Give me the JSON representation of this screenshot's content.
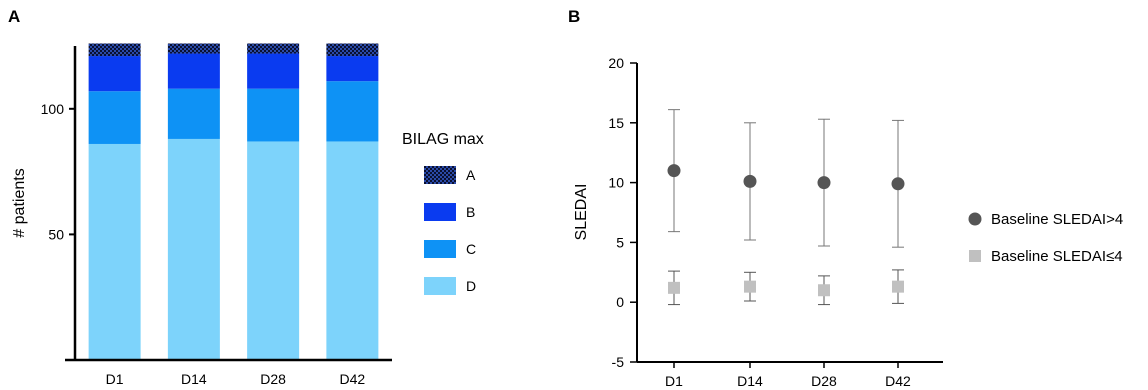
{
  "chart_data": [
    {
      "panel": "A",
      "type": "bar",
      "stacked": true,
      "categories": [
        "D1",
        "D14",
        "D28",
        "D42"
      ],
      "ylabel": "# patients",
      "ylim": [
        0,
        125
      ],
      "yticks": [
        50,
        100
      ],
      "legend_title": "BILAG max",
      "legend_position": "right",
      "series": [
        {
          "name": "D",
          "color": "#7dd3fb",
          "values": [
            86,
            88,
            87,
            87
          ]
        },
        {
          "name": "C",
          "color": "#0e92f5",
          "values": [
            21,
            20,
            21,
            24
          ]
        },
        {
          "name": "B",
          "color": "#0a3bf0",
          "values": [
            14,
            14,
            14,
            10
          ]
        },
        {
          "name": "A",
          "color": "#0b1d5e",
          "pattern": "checkered",
          "values": [
            5,
            4,
            4,
            5
          ]
        }
      ]
    },
    {
      "panel": "B",
      "type": "scatter",
      "error_bars": true,
      "categories": [
        "D1",
        "D14",
        "D28",
        "D42"
      ],
      "ylabel": "SLEDAI",
      "ylim": [
        -5,
        20
      ],
      "yticks": [
        -5,
        0,
        5,
        10,
        15,
        20
      ],
      "legend_position": "right",
      "series": [
        {
          "name": "Baseline SLEDAI>4",
          "marker": "circle",
          "color": "#555555",
          "values": [
            11.0,
            10.1,
            10.0,
            9.9
          ],
          "err_high": [
            16.1,
            15.0,
            15.3,
            15.2
          ],
          "err_low": [
            5.9,
            5.2,
            4.7,
            4.6
          ]
        },
        {
          "name": "Baseline SLEDAI≤4",
          "marker": "square",
          "color": "#c0c0c0",
          "values": [
            1.2,
            1.3,
            1.0,
            1.3
          ],
          "err_high": [
            2.6,
            2.5,
            2.2,
            2.7
          ],
          "err_low": [
            -0.2,
            0.1,
            -0.2,
            -0.1
          ]
        }
      ]
    }
  ]
}
